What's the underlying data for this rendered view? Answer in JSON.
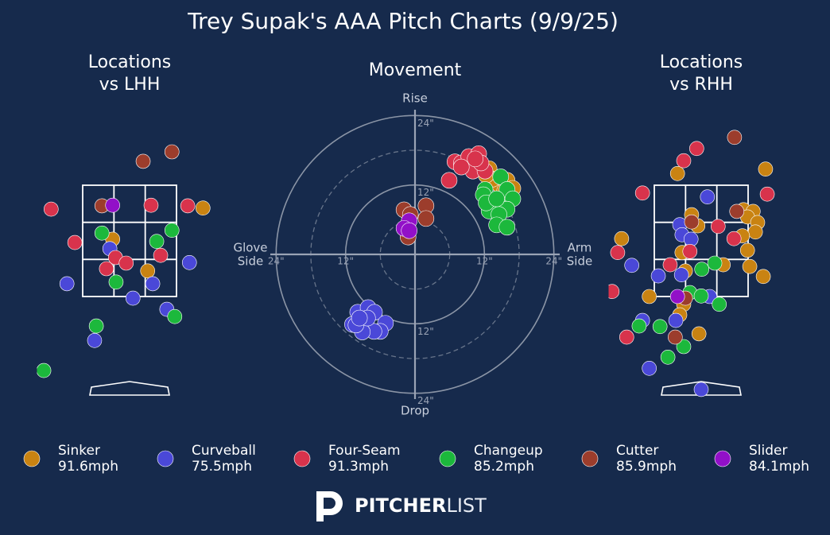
{
  "title": "Trey Supak's AAA Pitch Charts (9/9/25)",
  "legend": [
    {
      "name": "Sinker",
      "speed": "91.6mph",
      "color": "#c98312"
    },
    {
      "name": "Curveball",
      "speed": "75.5mph",
      "color": "#4a48d8"
    },
    {
      "name": "Four-Seam",
      "speed": "91.3mph",
      "color": "#d8334c"
    },
    {
      "name": "Changeup",
      "speed": "85.2mph",
      "color": "#1cb83c"
    },
    {
      "name": "Cutter",
      "speed": "85.9mph",
      "color": "#9c3d2c"
    },
    {
      "name": "Slider",
      "speed": "84.1mph",
      "color": "#9210c8"
    }
  ],
  "chart_data": [
    {
      "type": "scatter",
      "title": [
        "Locations",
        "vs LHH"
      ],
      "xlim": [
        -1.5,
        1.5
      ],
      "ylim": [
        -0.3,
        5
      ],
      "series": [
        {
          "x": [
            1.3,
            -0.3,
            0.32
          ],
          "y": [
            3.09,
            2.53,
            1.96
          ]
        },
        {
          "x": [
            -0.35,
            1.06,
            -1.11,
            0.41,
            0.06,
            0.66,
            -0.62
          ],
          "y": [
            2.36,
            2.11,
            1.73,
            1.73,
            1.47,
            1.27,
            0.71
          ]
        },
        {
          "x": [
            -1.39,
            0.38,
            1.03,
            -0.97,
            -0.25,
            -0.06,
            0.55,
            -0.41
          ],
          "y": [
            3.07,
            3.14,
            3.13,
            2.47,
            2.2,
            2.1,
            2.24,
            2.0
          ]
        },
        {
          "x": [
            -0.49,
            0.48,
            0.75,
            -0.24,
            0.8,
            -0.59,
            -1.52
          ],
          "y": [
            2.64,
            2.49,
            2.69,
            1.76,
            1.14,
            0.97,
            0.17
          ]
        },
        {
          "x": [
            0.24,
            0.75,
            -0.49
          ],
          "y": [
            3.93,
            4.1,
            3.13
          ]
        },
        {
          "x": [
            -0.3
          ],
          "y": [
            3.14
          ]
        }
      ]
    },
    {
      "type": "polar",
      "title": [
        "Movement"
      ],
      "xlim": [
        -25,
        25
      ],
      "ylim": [
        -25,
        25
      ],
      "xticks": [
        {
          "value": -24,
          "label": "24\""
        },
        {
          "value": -12,
          "label": "12\""
        },
        {
          "value": 12,
          "label": "12\""
        },
        {
          "value": 24,
          "label": "24\""
        }
      ],
      "yticks": [
        {
          "value": 24,
          "label": "24\""
        },
        {
          "value": 12,
          "label": "12\""
        },
        {
          "value": -12,
          "label": "12\""
        },
        {
          "value": -24,
          "label": "24\""
        }
      ],
      "minor_rings": [
        6,
        18
      ],
      "label_top": "Rise",
      "label_bottom": "Drop",
      "label_left": [
        "Glove",
        "Side"
      ],
      "label_right": [
        "Arm",
        "Side"
      ],
      "series": [
        {
          "x": [
            12.8,
            15.9,
            16.9,
            14.5,
            13.4,
            15.5,
            12.3
          ],
          "y": [
            14.8,
            12.8,
            11.4,
            12.1,
            13.0,
            11.0,
            13.7
          ]
        },
        {
          "x": [
            -9.9,
            -8.1,
            -7.0,
            -8.9,
            -10.8,
            -5.1,
            -6.0,
            -7.1,
            -9.1,
            -10.2,
            -8.2,
            -9.6
          ],
          "y": [
            -10.0,
            -9.2,
            -10.0,
            -11.7,
            -12.1,
            -11.9,
            -13.3,
            -13.3,
            -13.4,
            -12.2,
            -11.0,
            -11.0
          ]
        },
        {
          "x": [
            5.9,
            6.9,
            8.0,
            9.3,
            11.0,
            10.0,
            12.1,
            11.4,
            10.4,
            8.0
          ],
          "y": [
            12.8,
            16.0,
            15.8,
            16.9,
            17.4,
            14.4,
            14.4,
            15.8,
            16.5,
            15.1
          ]
        },
        {
          "x": [
            14.8,
            12.1,
            11.8,
            15.9,
            16.9,
            14.8,
            15.9,
            12.8,
            14.5,
            14.1,
            15.9,
            12.3,
            14.1
          ],
          "y": [
            13.4,
            11.2,
            10.3,
            11.2,
            9.6,
            8.2,
            7.8,
            7.5,
            6.9,
            5.1,
            4.7,
            8.9,
            9.6
          ]
        },
        {
          "x": [
            -1.9,
            1.9,
            1.9,
            -0.8,
            -1.2
          ],
          "y": [
            7.7,
            8.4,
            6.2,
            6.9,
            3.0
          ]
        },
        {
          "x": [
            -1.0,
            -1.9,
            -1.0
          ],
          "y": [
            5.8,
            4.5,
            4.1
          ]
        }
      ]
    },
    {
      "type": "scatter",
      "title": [
        "Locations",
        "vs RHH"
      ],
      "xlim": [
        -1.5,
        1.5
      ],
      "ylim": [
        -0.3,
        5
      ],
      "series": [
        {
          "x": [
            -0.42,
            1.14,
            -0.17,
            -0.06,
            0.75,
            0.92,
            0.82,
            1.0,
            0.96,
            0.73,
            -0.34,
            0.82,
            0.39,
            0.86,
            1.1,
            -0.28,
            -0.92,
            -1.41,
            -0.31,
            -0.38,
            -0.04
          ],
          "y": [
            3.71,
            3.79,
            2.97,
            2.77,
            3.06,
            3.03,
            2.93,
            2.83,
            2.66,
            2.59,
            2.29,
            2.33,
            2.07,
            2.04,
            1.86,
            1.96,
            1.5,
            2.54,
            1.36,
            1.17,
            0.83
          ]
        },
        {
          "x": [
            0.11,
            -0.38,
            -0.34,
            -0.18,
            -1.23,
            -0.76,
            -0.35,
            0.15,
            -0.45,
            -1.04,
            -0.92,
            0.0
          ],
          "y": [
            3.29,
            2.79,
            2.61,
            2.53,
            2.06,
            1.87,
            1.89,
            1.5,
            1.07,
            1.07,
            0.21,
            -0.17
          ]
        },
        {
          "x": [
            -0.08,
            -0.31,
            -1.04,
            1.17,
            0.3,
            0.58,
            -0.55,
            -0.2,
            -1.48,
            -1.58,
            -1.32
          ],
          "y": [
            4.16,
            3.94,
            3.36,
            3.34,
            2.76,
            2.54,
            2.07,
            2.31,
            2.29,
            1.59,
            0.77
          ]
        },
        {
          "x": [
            0.24,
            0.01,
            -0.2,
            0.0,
            0.32,
            -1.1,
            -0.73,
            -0.31,
            -0.59
          ],
          "y": [
            2.1,
            1.99,
            1.57,
            1.51,
            1.36,
            0.97,
            0.96,
            0.6,
            0.41
          ]
        },
        {
          "x": [
            0.59,
            -0.17,
            0.63,
            -0.46,
            -0.28
          ],
          "y": [
            4.36,
            2.84,
            3.03,
            0.77,
            1.47
          ]
        },
        {
          "x": [
            -0.42
          ],
          "y": [
            1.5
          ]
        }
      ]
    }
  ],
  "logo": {
    "bold": "PITCHER",
    "light": "LIST"
  }
}
